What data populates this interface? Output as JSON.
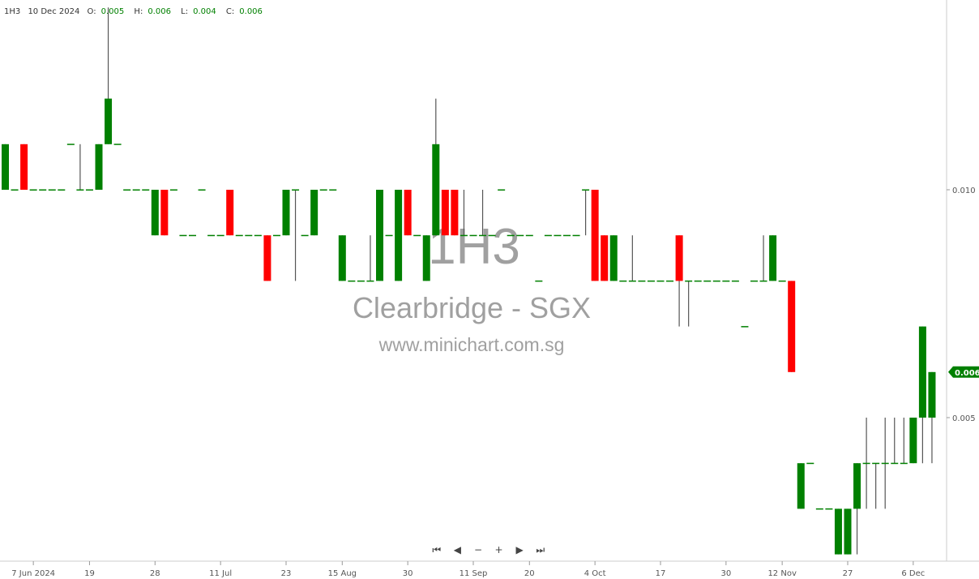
{
  "header": {
    "symbol": "1H3",
    "date": "10 Dec 2024",
    "o_label": "O:",
    "o": "0.005",
    "h_label": "H:",
    "h": "0.006",
    "l_label": "L:",
    "l": "0.004",
    "c_label": "C:",
    "c": "0.006"
  },
  "watermark": {
    "code": "1H3",
    "name": "Clearbridge - SGX",
    "site": "www.minichart.com.sg"
  },
  "navigation": [
    "⏮",
    "◀",
    "−",
    "+",
    "▶",
    "⏭"
  ],
  "colors": {
    "up": "#008000",
    "down": "#ff0000",
    "wick": "#555555",
    "axis": "#cccccc",
    "watermark": "#a0a0a0"
  },
  "chart_data": {
    "type": "candlestick",
    "ylim": [
      0.002,
      0.014
    ],
    "y_ticks": [
      {
        "value": 0.01,
        "label": "0.010"
      },
      {
        "value": 0.005,
        "label": "0.005"
      }
    ],
    "last_price": {
      "value": 0.006,
      "label": "0.006"
    },
    "x_ticks": [
      {
        "index": 3,
        "label": "7 Jun 2024"
      },
      {
        "index": 9,
        "label": "19"
      },
      {
        "index": 16,
        "label": "28"
      },
      {
        "index": 23,
        "label": "11 Jul"
      },
      {
        "index": 30,
        "label": "23"
      },
      {
        "index": 36,
        "label": "15 Aug"
      },
      {
        "index": 43,
        "label": "30"
      },
      {
        "index": 50,
        "label": "11 Sep"
      },
      {
        "index": 56,
        "label": "20"
      },
      {
        "index": 63,
        "label": "4 Oct"
      },
      {
        "index": 70,
        "label": "17"
      },
      {
        "index": 77,
        "label": "30"
      },
      {
        "index": 83,
        "label": "12 Nov"
      },
      {
        "index": 90,
        "label": "27"
      },
      {
        "index": 97,
        "label": "6 Dec"
      }
    ],
    "candle_fields": [
      "open",
      "high",
      "low",
      "close",
      "color"
    ],
    "candles": [
      [
        0.01,
        0.011,
        0.01,
        0.011,
        "g"
      ],
      [
        0.01,
        0.01,
        0.01,
        0.01,
        "g"
      ],
      [
        0.011,
        0.011,
        0.01,
        0.01,
        "r"
      ],
      [
        0.01,
        0.01,
        0.01,
        0.01,
        "g"
      ],
      [
        0.01,
        0.01,
        0.01,
        0.01,
        "g"
      ],
      [
        0.01,
        0.01,
        0.01,
        0.01,
        "g"
      ],
      [
        0.01,
        0.01,
        0.01,
        0.01,
        "g"
      ],
      [
        0.011,
        0.011,
        0.011,
        0.011,
        "g"
      ],
      [
        0.01,
        0.011,
        0.01,
        0.01,
        "g"
      ],
      [
        0.01,
        0.01,
        0.01,
        0.01,
        "g"
      ],
      [
        0.01,
        0.011,
        0.01,
        0.011,
        "g"
      ],
      [
        0.011,
        0.014,
        0.011,
        0.012,
        "g"
      ],
      [
        0.011,
        0.011,
        0.011,
        0.011,
        "g"
      ],
      [
        0.01,
        0.01,
        0.01,
        0.01,
        "g"
      ],
      [
        0.01,
        0.01,
        0.01,
        0.01,
        "g"
      ],
      [
        0.01,
        0.01,
        0.01,
        0.01,
        "g"
      ],
      [
        0.009,
        0.01,
        0.009,
        0.01,
        "g"
      ],
      [
        0.01,
        0.01,
        0.009,
        0.009,
        "r"
      ],
      [
        0.01,
        0.01,
        0.01,
        0.01,
        "g"
      ],
      [
        0.009,
        0.009,
        0.009,
        0.009,
        "g"
      ],
      [
        0.009,
        0.009,
        0.009,
        0.009,
        "g"
      ],
      [
        0.01,
        0.01,
        0.01,
        0.01,
        "g"
      ],
      [
        0.009,
        0.009,
        0.009,
        0.009,
        "g"
      ],
      [
        0.009,
        0.009,
        0.009,
        0.009,
        "g"
      ],
      [
        0.01,
        0.01,
        0.009,
        0.009,
        "r"
      ],
      [
        0.009,
        0.009,
        0.009,
        0.009,
        "g"
      ],
      [
        0.009,
        0.009,
        0.009,
        0.009,
        "g"
      ],
      [
        0.009,
        0.009,
        0.009,
        0.009,
        "g"
      ],
      [
        0.009,
        0.009,
        0.008,
        0.008,
        "r"
      ],
      [
        0.009,
        0.009,
        0.009,
        0.009,
        "g"
      ],
      [
        0.009,
        0.01,
        0.009,
        0.01,
        "g"
      ],
      [
        0.01,
        0.01,
        0.008,
        0.01,
        "g"
      ],
      [
        0.009,
        0.009,
        0.009,
        0.009,
        "g"
      ],
      [
        0.009,
        0.01,
        0.009,
        0.01,
        "g"
      ],
      [
        0.01,
        0.01,
        0.01,
        0.01,
        "g"
      ],
      [
        0.01,
        0.01,
        0.01,
        0.01,
        "g"
      ],
      [
        0.008,
        0.009,
        0.008,
        0.009,
        "g"
      ],
      [
        0.008,
        0.008,
        0.008,
        0.008,
        "g"
      ],
      [
        0.008,
        0.008,
        0.008,
        0.008,
        "g"
      ],
      [
        0.008,
        0.009,
        0.008,
        0.008,
        "g"
      ],
      [
        0.008,
        0.01,
        0.008,
        0.01,
        "g"
      ],
      [
        0.009,
        0.009,
        0.009,
        0.009,
        "g"
      ],
      [
        0.008,
        0.01,
        0.008,
        0.01,
        "g"
      ],
      [
        0.01,
        0.01,
        0.009,
        0.009,
        "r"
      ],
      [
        0.009,
        0.009,
        0.009,
        0.009,
        "g"
      ],
      [
        0.008,
        0.009,
        0.008,
        0.009,
        "g"
      ],
      [
        0.009,
        0.012,
        0.009,
        0.011,
        "g"
      ],
      [
        0.01,
        0.01,
        0.009,
        0.009,
        "r"
      ],
      [
        0.01,
        0.01,
        0.009,
        0.009,
        "r"
      ],
      [
        0.009,
        0.01,
        0.009,
        0.009,
        "g"
      ],
      [
        0.009,
        0.009,
        0.009,
        0.009,
        "g"
      ],
      [
        0.009,
        0.01,
        0.009,
        0.009,
        "g"
      ],
      [
        0.009,
        0.009,
        0.009,
        0.009,
        "g"
      ],
      [
        0.01,
        0.01,
        0.01,
        0.01,
        "g"
      ],
      [
        0.009,
        0.009,
        0.009,
        0.009,
        "g"
      ],
      [
        0.009,
        0.009,
        0.009,
        0.009,
        "g"
      ],
      [
        0.009,
        0.009,
        0.009,
        0.009,
        "g"
      ],
      [
        0.008,
        0.008,
        0.008,
        0.008,
        "g"
      ],
      [
        0.009,
        0.009,
        0.009,
        0.009,
        "g"
      ],
      [
        0.009,
        0.009,
        0.009,
        0.009,
        "g"
      ],
      [
        0.009,
        0.009,
        0.009,
        0.009,
        "g"
      ],
      [
        0.009,
        0.009,
        0.009,
        0.009,
        "g"
      ],
      [
        0.01,
        0.01,
        0.009,
        0.01,
        "g"
      ],
      [
        0.01,
        0.01,
        0.008,
        0.008,
        "r"
      ],
      [
        0.009,
        0.009,
        0.008,
        0.008,
        "r"
      ],
      [
        0.008,
        0.009,
        0.008,
        0.009,
        "g"
      ],
      [
        0.008,
        0.008,
        0.008,
        0.008,
        "g"
      ],
      [
        0.008,
        0.009,
        0.008,
        0.008,
        "g"
      ],
      [
        0.008,
        0.008,
        0.008,
        0.008,
        "g"
      ],
      [
        0.008,
        0.008,
        0.008,
        0.008,
        "g"
      ],
      [
        0.008,
        0.008,
        0.008,
        0.008,
        "g"
      ],
      [
        0.008,
        0.008,
        0.008,
        0.008,
        "g"
      ],
      [
        0.009,
        0.009,
        0.007,
        0.008,
        "r"
      ],
      [
        0.008,
        0.008,
        0.007,
        0.008,
        "g"
      ],
      [
        0.008,
        0.008,
        0.008,
        0.008,
        "g"
      ],
      [
        0.008,
        0.008,
        0.008,
        0.008,
        "g"
      ],
      [
        0.008,
        0.008,
        0.008,
        0.008,
        "g"
      ],
      [
        0.008,
        0.008,
        0.008,
        0.008,
        "g"
      ],
      [
        0.008,
        0.008,
        0.008,
        0.008,
        "g"
      ],
      [
        0.007,
        0.007,
        0.007,
        0.007,
        "g"
      ],
      [
        0.008,
        0.008,
        0.008,
        0.008,
        "g"
      ],
      [
        0.008,
        0.009,
        0.008,
        0.008,
        "g"
      ],
      [
        0.008,
        0.009,
        0.008,
        0.009,
        "g"
      ],
      [
        0.008,
        0.008,
        0.008,
        0.008,
        "g"
      ],
      [
        0.008,
        0.008,
        0.006,
        0.006,
        "r"
      ],
      [
        0.003,
        0.004,
        0.003,
        0.004,
        "g"
      ],
      [
        0.004,
        0.004,
        0.004,
        0.004,
        "g"
      ],
      [
        0.003,
        0.003,
        0.003,
        0.003,
        "g"
      ],
      [
        0.003,
        0.003,
        0.003,
        0.003,
        "g"
      ],
      [
        0.003,
        0.003,
        0.002,
        0.002,
        "g"
      ],
      [
        0.003,
        0.003,
        0.002,
        0.002,
        "g"
      ],
      [
        0.003,
        0.004,
        0.002,
        0.004,
        "g"
      ],
      [
        0.004,
        0.005,
        0.003,
        0.004,
        "g"
      ],
      [
        0.004,
        0.004,
        0.003,
        0.004,
        "g"
      ],
      [
        0.004,
        0.005,
        0.003,
        0.004,
        "g"
      ],
      [
        0.004,
        0.005,
        0.004,
        0.004,
        "g"
      ],
      [
        0.004,
        0.005,
        0.004,
        0.004,
        "g"
      ],
      [
        0.004,
        0.005,
        0.004,
        0.005,
        "g"
      ],
      [
        0.005,
        0.007,
        0.004,
        0.007,
        "g"
      ],
      [
        0.005,
        0.006,
        0.004,
        0.006,
        "g"
      ]
    ]
  }
}
